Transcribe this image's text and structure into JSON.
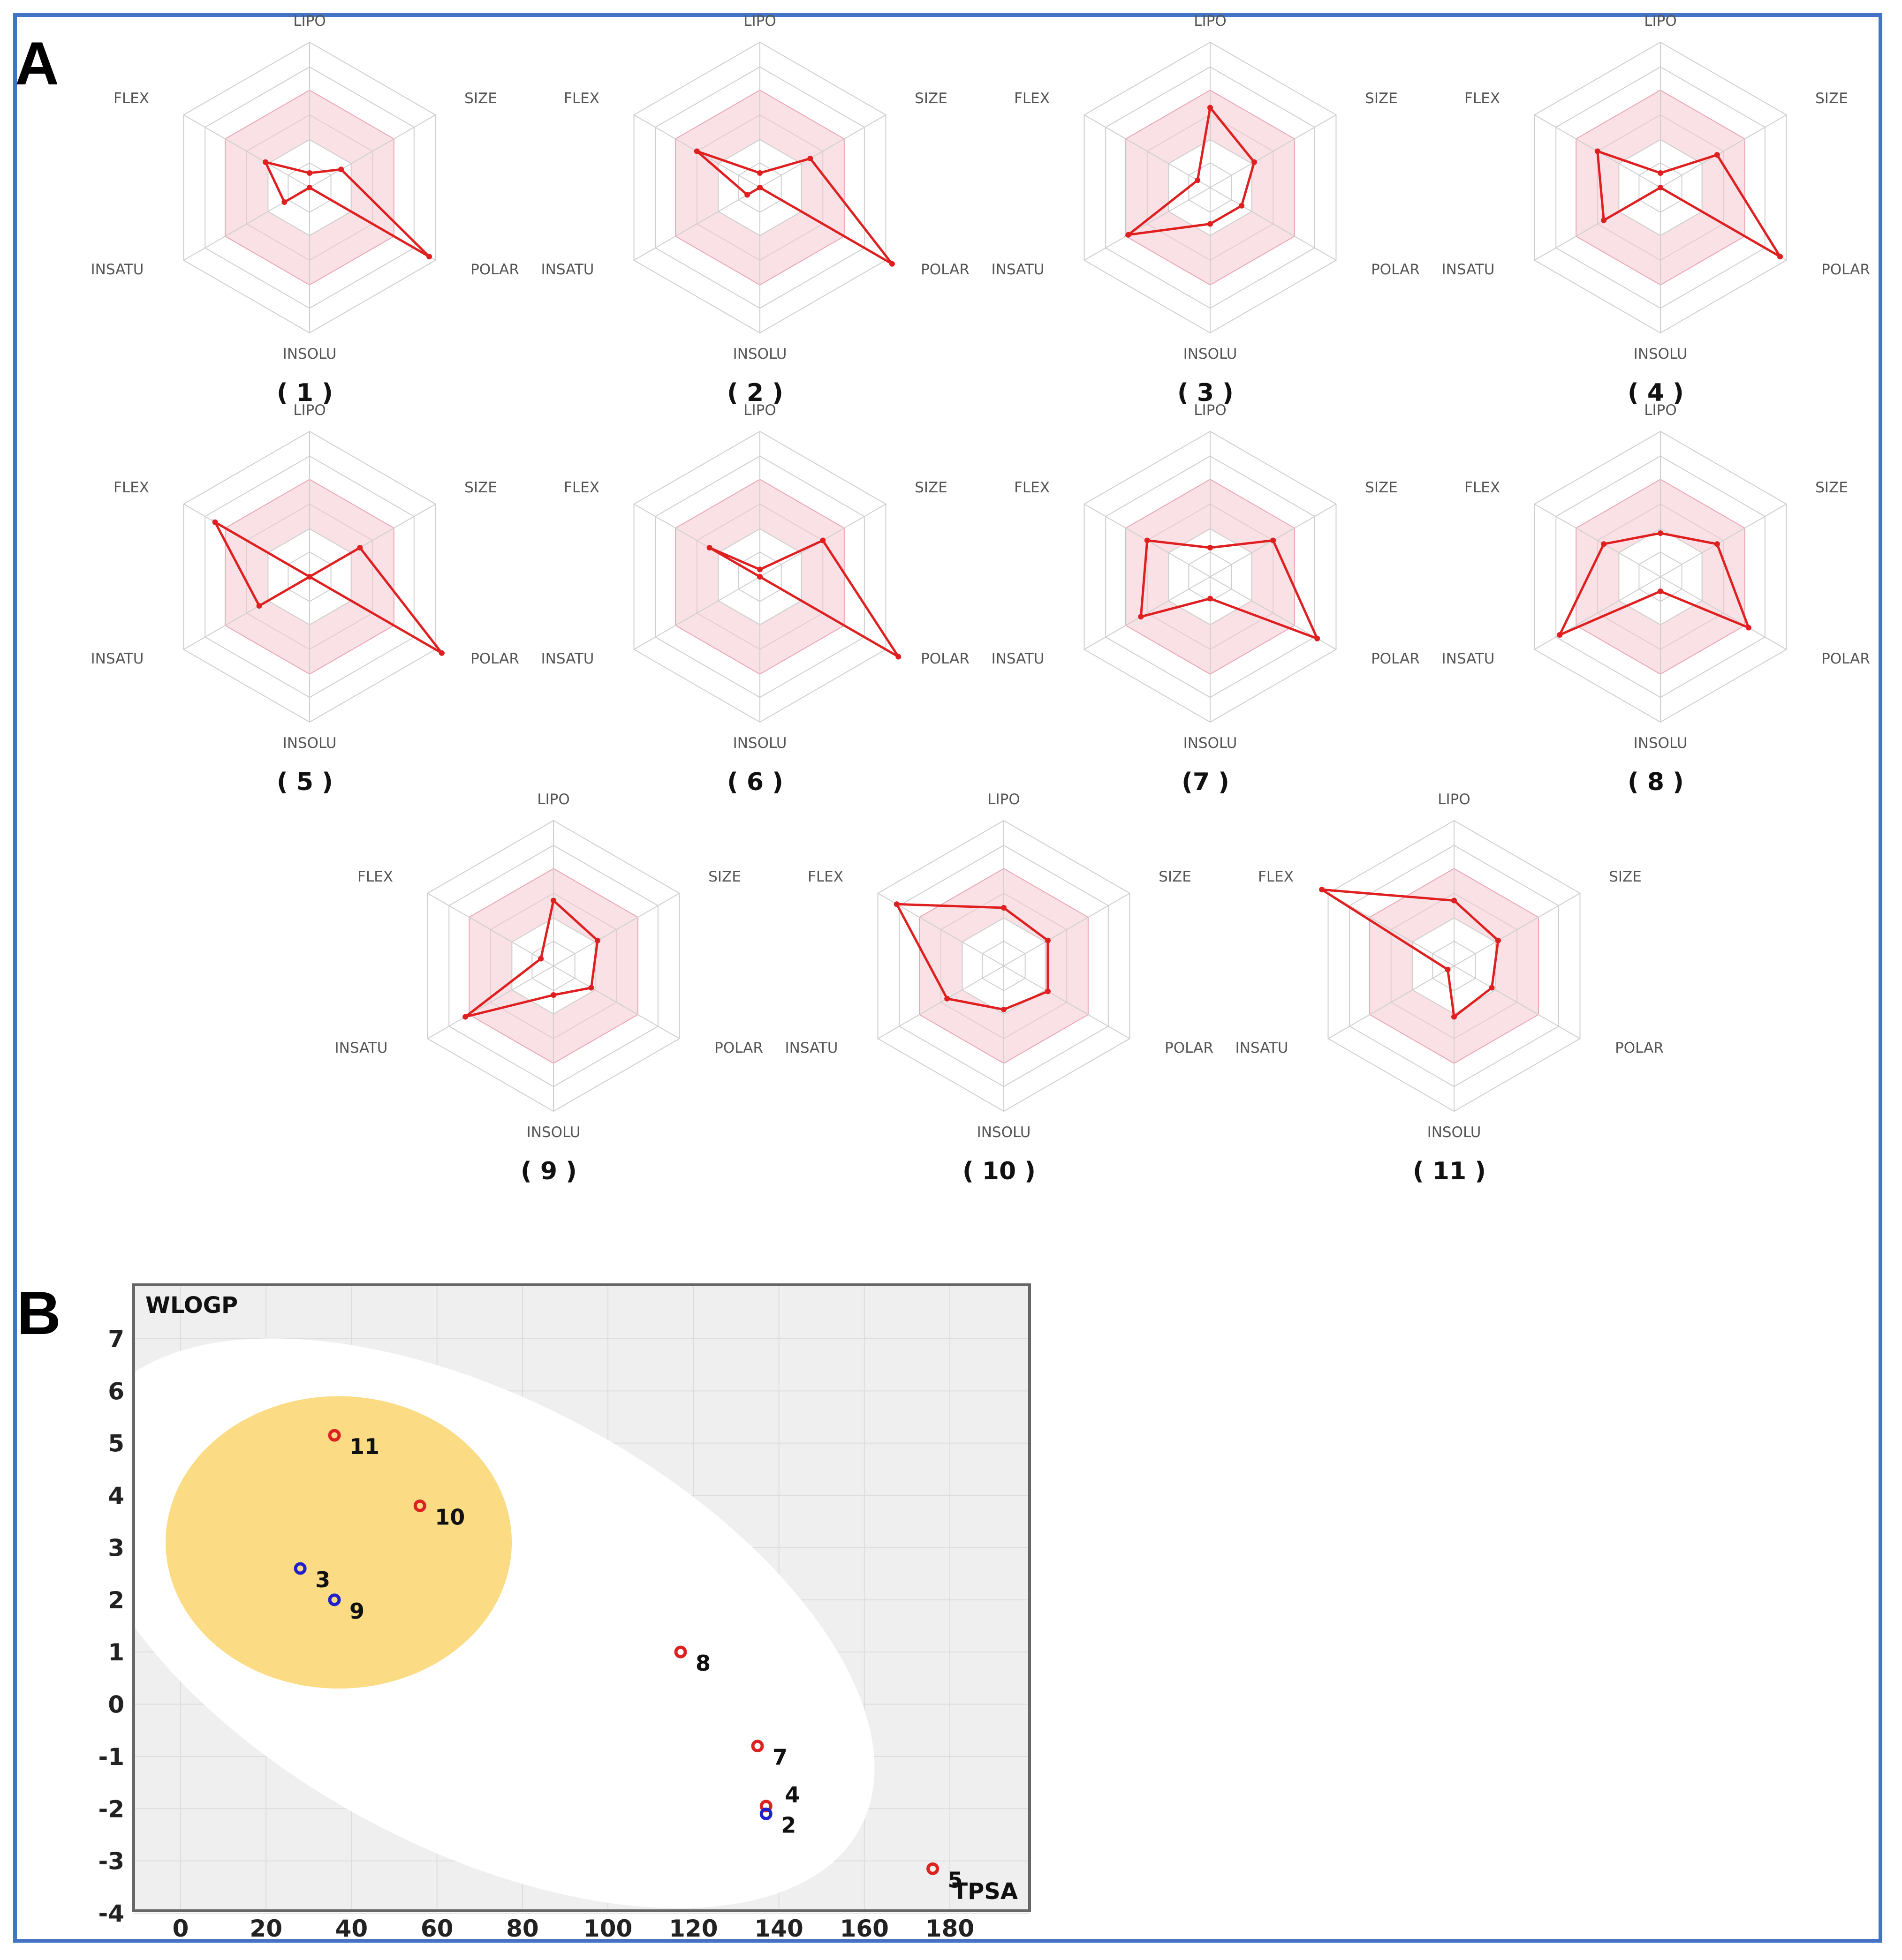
{
  "panels": {
    "a_label": "A",
    "b_label": "B"
  },
  "chart_data": [
    {
      "type": "radar",
      "axes": [
        "LIPO",
        "SIZE",
        "POLAR",
        "INSOLU",
        "INSATU",
        "FLEX"
      ],
      "scale": [
        0,
        1
      ],
      "optimal_range": [
        0.33,
        0.67
      ],
      "charts": [
        {
          "label": "( 1 )",
          "values": [
            0.1,
            0.25,
            0.95,
            0.0,
            0.2,
            0.35
          ]
        },
        {
          "label": "( 2 )",
          "values": [
            0.1,
            0.4,
            1.05,
            0.0,
            0.1,
            0.5
          ]
        },
        {
          "label": "( 3 )",
          "values": [
            0.55,
            0.35,
            0.25,
            0.25,
            0.65,
            0.1
          ]
        },
        {
          "label": "( 4 )",
          "values": [
            0.1,
            0.45,
            0.95,
            0.0,
            0.45,
            0.5
          ]
        },
        {
          "label": "( 5 )",
          "values": [
            0.0,
            0.4,
            1.05,
            0.0,
            0.4,
            0.75
          ]
        },
        {
          "label": "( 6 )",
          "values": [
            0.05,
            0.5,
            1.1,
            0.0,
            0.0,
            0.4
          ]
        },
        {
          "label": "(7 )",
          "values": [
            0.2,
            0.5,
            0.85,
            0.15,
            0.55,
            0.5
          ]
        },
        {
          "label": "( 8 )",
          "values": [
            0.3,
            0.45,
            0.7,
            0.1,
            0.8,
            0.45
          ]
        },
        {
          "label": "( 9 )",
          "values": [
            0.45,
            0.35,
            0.3,
            0.2,
            0.7,
            0.1
          ]
        },
        {
          "label": "( 10 )",
          "values": [
            0.4,
            0.35,
            0.35,
            0.3,
            0.45,
            0.85
          ]
        },
        {
          "label": "( 11 )",
          "values": [
            0.45,
            0.35,
            0.3,
            0.35,
            0.05,
            1.05
          ]
        }
      ]
    },
    {
      "type": "scatter",
      "title": "",
      "xlabel": "TPSA",
      "ylabel": "WLOGP",
      "xlim": [
        -10,
        200
      ],
      "ylim": [
        -4,
        7.9
      ],
      "xticks": [
        0,
        20,
        40,
        60,
        80,
        100,
        120,
        140,
        160,
        180
      ],
      "yticks": [
        7,
        6,
        5,
        4,
        3,
        2,
        1,
        0,
        -1,
        -2,
        -3,
        -4
      ],
      "x_tick_labels": [
        "0",
        "20",
        "40",
        "60",
        "80",
        "100",
        "120",
        "140",
        "160",
        "180"
      ],
      "y_tick_labels": [
        "7",
        "6",
        "5",
        "4",
        "3",
        "2",
        "1",
        "0",
        "-1",
        "-2",
        "-3",
        "-4"
      ],
      "regions": [
        {
          "name": "white",
          "cx": 69,
          "cy": 1.55,
          "rx": 102,
          "ry": 4.3,
          "rot": 28,
          "color": "#ffffff"
        },
        {
          "name": "yolk",
          "cx": 37,
          "cy": 3.1,
          "rx": 40.5,
          "ry": 2.8,
          "rot": 0,
          "color": "#fbd97c"
        }
      ],
      "points": [
        {
          "label": "11",
          "x": 36,
          "y": 5.15,
          "color": "#dd2222"
        },
        {
          "label": "10",
          "x": 56,
          "y": 3.8,
          "color": "#dd2222"
        },
        {
          "label": "3",
          "x": 28,
          "y": 2.6,
          "color": "#2222cc"
        },
        {
          "label": "9",
          "x": 36,
          "y": 2.0,
          "color": "#2222cc"
        },
        {
          "label": "8",
          "x": 117,
          "y": 1.0,
          "color": "#dd2222"
        },
        {
          "label": "7",
          "x": 135,
          "y": -0.8,
          "color": "#dd2222"
        },
        {
          "label": "4",
          "x": 137,
          "y": -1.95,
          "color": "#dd2222"
        },
        {
          "label": "2",
          "x": 137,
          "y": -2.1,
          "color": "#2222cc"
        },
        {
          "label": "5",
          "x": 176,
          "y": -3.15,
          "color": "#dd2222"
        }
      ]
    }
  ]
}
